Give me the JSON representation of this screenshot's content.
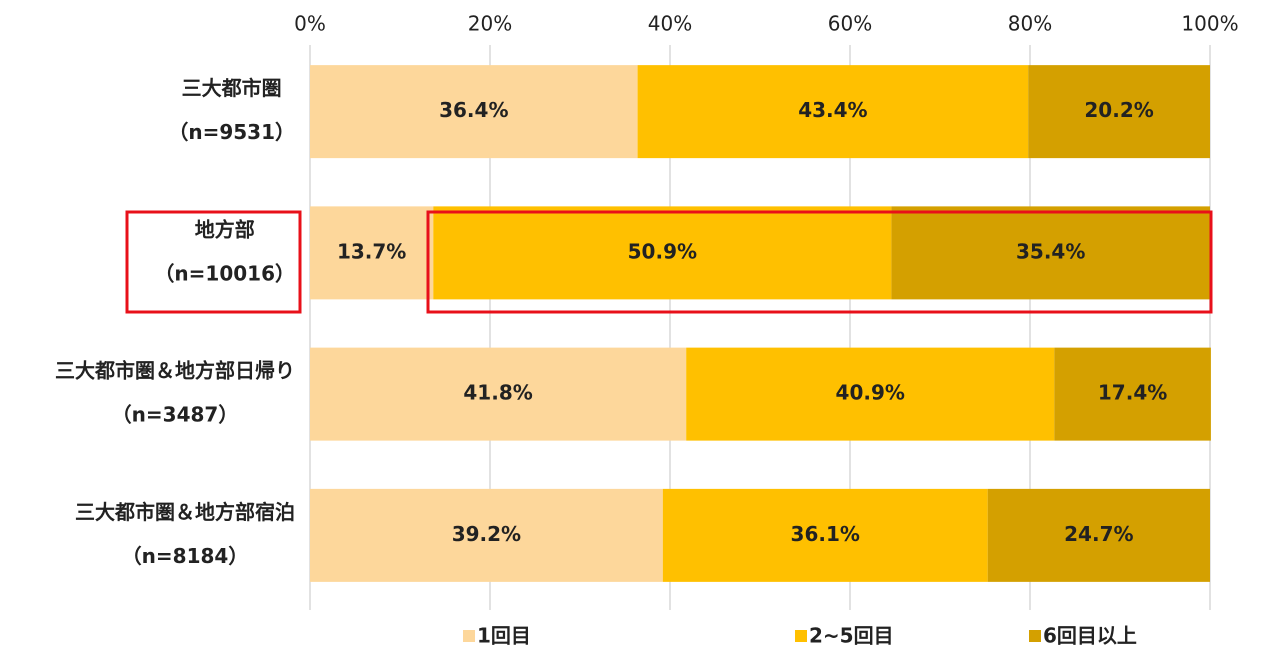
{
  "chart_data": {
    "type": "stacked-bar-horizontal",
    "categories": [
      [
        "三大都市圏",
        "（n=9531）"
      ],
      [
        "地方部",
        "（n=10016）"
      ],
      [
        "三大都市圏＆地方部日帰り",
        "（n=3487）"
      ],
      [
        "三大都市圏＆地方部宿泊",
        "（n=8184）"
      ]
    ],
    "series": [
      {
        "name": "1回目",
        "color": "#fdd79b",
        "values": [
          36.4,
          13.7,
          41.8,
          39.2
        ],
        "value_labels": [
          "36.4%",
          "13.7%",
          "41.8%",
          "39.2%"
        ]
      },
      {
        "name": "2~5回目",
        "color": "#ffc000",
        "values": [
          43.4,
          50.9,
          40.9,
          36.1
        ],
        "value_labels": [
          "43.4%",
          "50.9%",
          "40.9%",
          "36.1%"
        ]
      },
      {
        "name": "6回目以上",
        "color": "#d4a000",
        "values": [
          20.2,
          35.4,
          17.4,
          24.7
        ],
        "value_labels": [
          "20.2%",
          "35.4%",
          "17.4%",
          "24.7%"
        ]
      }
    ],
    "xlim": [
      0,
      100
    ],
    "xticks": [
      {
        "value": 0,
        "label": "0%"
      },
      {
        "value": 20,
        "label": "20%"
      },
      {
        "value": 40,
        "label": "40%"
      },
      {
        "value": 60,
        "label": "60%"
      },
      {
        "value": 80,
        "label": "80%"
      },
      {
        "value": 100,
        "label": "100%"
      }
    ],
    "grid": true
  }
}
